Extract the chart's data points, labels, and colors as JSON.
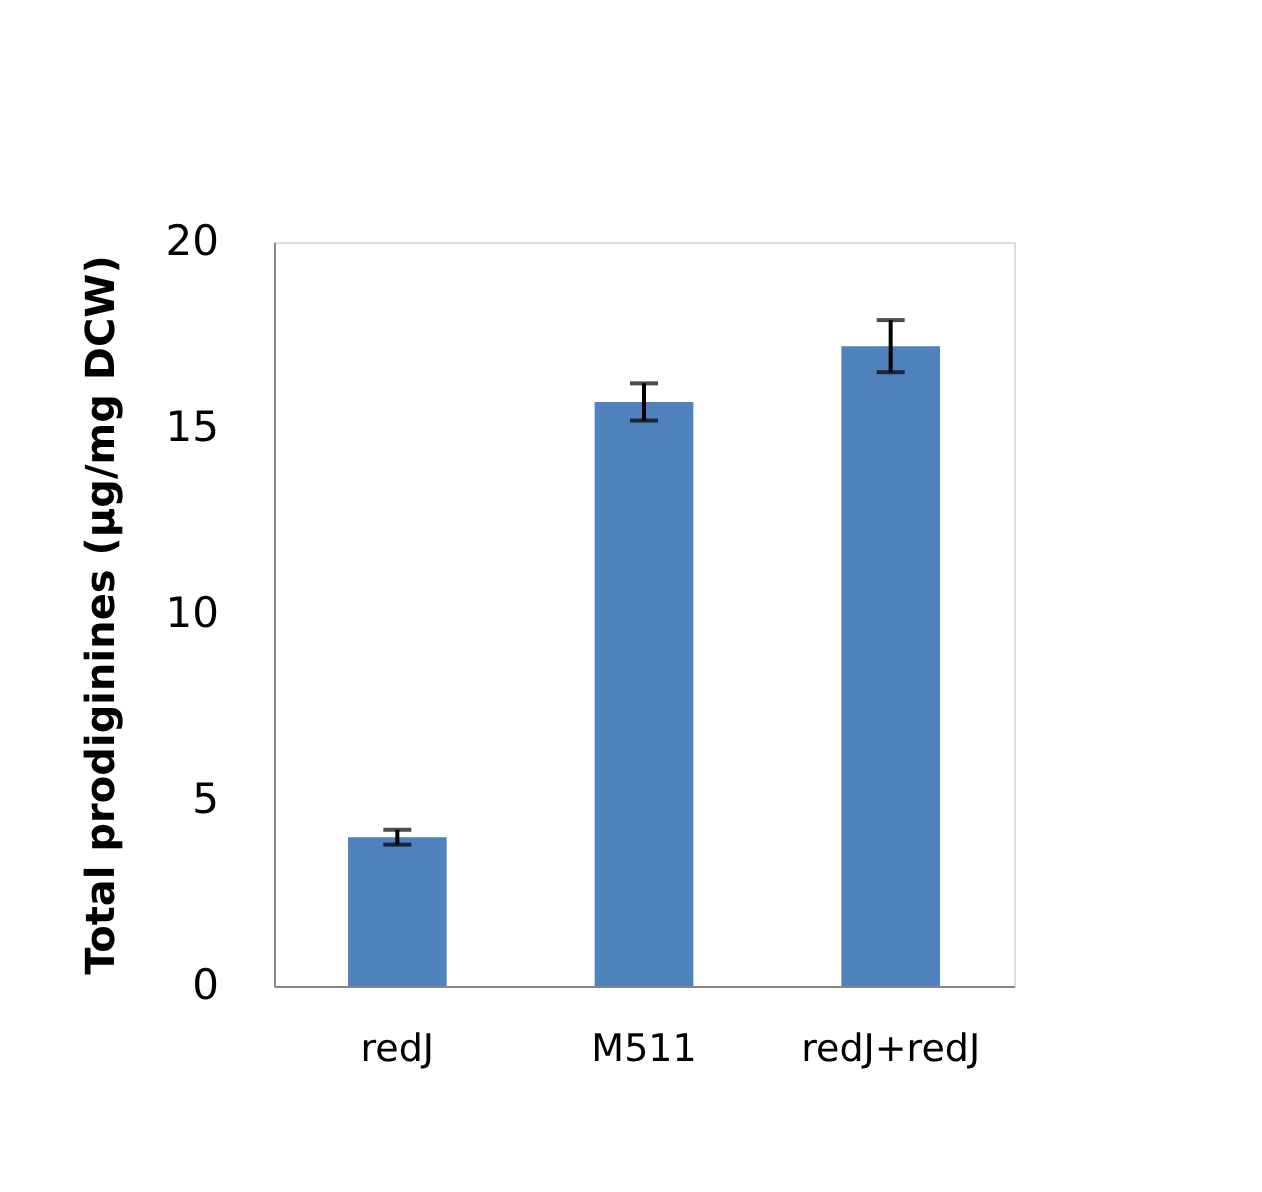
{
  "chart_data": {
    "type": "bar",
    "ylabel": "Total prodiginines (µg/mg DCW)",
    "categories": [
      "redJ",
      "M511",
      "redJ+redJ"
    ],
    "values": [
      4.0,
      15.7,
      17.2
    ],
    "errors": [
      0.2,
      0.5,
      0.7
    ],
    "color": "#4f81bd",
    "ylim": [
      0,
      20
    ],
    "yticks": [
      0,
      5,
      10,
      15,
      20
    ],
    "grid": false
  }
}
